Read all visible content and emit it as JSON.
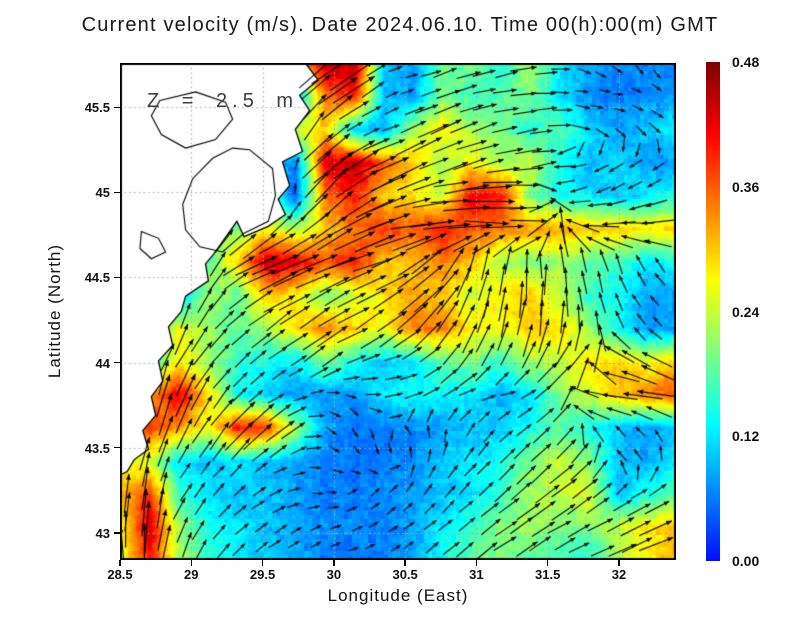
{
  "title": "Current velocity (m/s). Date 2024.06.10. Time 00(h):00(m) GMT",
  "annotation": "Z = 2.5 m",
  "axes": {
    "x": {
      "label": "Longitude (East)",
      "tick_labels": [
        "28.5",
        "29",
        "29.5",
        "30",
        "30.5",
        "31",
        "31.5",
        "32"
      ],
      "tick_values": [
        28.5,
        29,
        29.5,
        30,
        30.5,
        31,
        31.5,
        32
      ],
      "range": [
        28.5,
        32.4
      ]
    },
    "y": {
      "label": "Latitude (North)",
      "tick_labels": [
        "45.5",
        "45",
        "44.5",
        "44",
        "43.5",
        "43"
      ],
      "tick_values": [
        45.5,
        45,
        44.5,
        44,
        43.5,
        43
      ],
      "range": [
        42.84,
        45.76
      ]
    }
  },
  "colorbar": {
    "tick_labels": [
      "0.48",
      "0.36",
      "0.24",
      "0.12",
      "0.00"
    ],
    "tick_values": [
      0.48,
      0.36,
      0.24,
      0.12,
      0.0
    ],
    "min": 0.0,
    "max": 0.48,
    "units": "m/s",
    "colormap": "jet"
  },
  "chart_data": {
    "type": "heatmap",
    "variable": "sea surface current speed (m/s)",
    "overlay": "current velocity vectors (black arrows)",
    "depth_m": 2.5,
    "date": "2024.06.10",
    "time_gmt": "00:00",
    "lon_range": [
      28.5,
      32.4
    ],
    "lat_range": [
      42.84,
      45.76
    ],
    "grid_lon": [
      28.5,
      28.71,
      28.91,
      29.12,
      29.32,
      29.53,
      29.73,
      29.94,
      30.14,
      30.35,
      30.55,
      30.76,
      30.96,
      31.17,
      31.37,
      31.58,
      31.78,
      31.99,
      32.19,
      32.4
    ],
    "grid_lat": [
      45.76,
      45.57,
      45.37,
      45.18,
      44.98,
      44.79,
      44.59,
      44.4,
      44.2,
      44.01,
      43.81,
      43.62,
      43.42,
      43.23,
      43.03,
      42.84
    ],
    "speed_ms": [
      [
        null,
        null,
        null,
        null,
        null,
        null,
        null,
        0.44,
        0.45,
        0.1,
        0.08,
        0.18,
        0.2,
        0.15,
        0.22,
        0.13,
        0.08,
        0.07,
        0.06,
        0.06
      ],
      [
        null,
        null,
        null,
        null,
        null,
        null,
        0.08,
        0.35,
        0.4,
        0.09,
        0.08,
        0.2,
        0.16,
        0.18,
        0.2,
        0.12,
        0.07,
        0.06,
        0.07,
        0.08
      ],
      [
        null,
        null,
        null,
        null,
        null,
        null,
        0.24,
        0.3,
        0.1,
        0.09,
        0.22,
        0.28,
        0.22,
        0.2,
        0.15,
        0.18,
        0.12,
        0.08,
        0.1,
        0.12
      ],
      [
        null,
        null,
        null,
        null,
        null,
        null,
        0.06,
        0.42,
        0.45,
        0.36,
        0.3,
        0.22,
        0.27,
        0.22,
        0.24,
        0.14,
        0.09,
        0.12,
        0.08,
        0.08
      ],
      [
        null,
        null,
        null,
        null,
        null,
        null,
        0.05,
        0.35,
        0.4,
        0.3,
        0.28,
        0.24,
        0.42,
        0.4,
        0.2,
        0.14,
        0.12,
        0.1,
        0.12,
        0.14
      ],
      [
        null,
        null,
        null,
        null,
        0.2,
        0.28,
        0.22,
        0.3,
        0.34,
        0.38,
        0.36,
        0.4,
        0.36,
        0.34,
        0.32,
        0.32,
        0.3,
        0.3,
        0.28,
        0.3
      ],
      [
        null,
        null,
        null,
        0.18,
        0.3,
        0.44,
        0.42,
        0.36,
        0.4,
        0.3,
        0.3,
        0.34,
        0.3,
        0.22,
        0.2,
        0.22,
        0.18,
        0.16,
        0.12,
        0.14
      ],
      [
        null,
        null,
        0.1,
        0.22,
        0.18,
        0.3,
        0.28,
        0.2,
        0.24,
        0.28,
        0.32,
        0.3,
        0.24,
        0.28,
        0.3,
        0.24,
        0.16,
        0.14,
        0.08,
        0.08
      ],
      [
        null,
        null,
        0.26,
        0.22,
        0.18,
        0.22,
        0.28,
        0.34,
        0.3,
        0.26,
        0.34,
        0.34,
        0.28,
        0.26,
        0.3,
        0.28,
        0.22,
        0.14,
        0.07,
        0.08
      ],
      [
        null,
        0.14,
        0.28,
        0.22,
        0.16,
        0.14,
        0.12,
        0.2,
        0.14,
        0.1,
        0.12,
        0.18,
        0.2,
        0.16,
        0.22,
        0.24,
        0.28,
        0.3,
        0.26,
        0.3
      ],
      [
        null,
        0.32,
        0.42,
        0.28,
        0.14,
        0.1,
        0.08,
        0.08,
        0.07,
        0.12,
        0.14,
        0.13,
        0.12,
        0.09,
        0.12,
        0.2,
        0.24,
        0.3,
        0.34,
        0.36
      ],
      [
        null,
        0.38,
        0.32,
        0.26,
        0.4,
        0.38,
        0.22,
        0.08,
        0.06,
        0.06,
        0.07,
        0.08,
        0.1,
        0.1,
        0.14,
        0.18,
        0.14,
        0.1,
        0.08,
        0.1
      ],
      [
        0.26,
        0.24,
        0.12,
        0.1,
        0.12,
        0.1,
        0.08,
        0.07,
        0.05,
        0.06,
        0.07,
        0.1,
        0.12,
        0.14,
        0.2,
        0.24,
        0.2,
        0.1,
        0.08,
        0.12
      ],
      [
        0.3,
        0.38,
        0.16,
        0.12,
        0.1,
        0.1,
        0.08,
        0.06,
        0.06,
        0.07,
        0.08,
        0.1,
        0.12,
        0.16,
        0.22,
        0.24,
        0.26,
        0.1,
        0.14,
        0.18
      ],
      [
        0.26,
        0.44,
        0.22,
        0.14,
        0.12,
        0.1,
        0.08,
        0.07,
        0.07,
        0.06,
        0.08,
        0.12,
        0.16,
        0.2,
        0.22,
        0.2,
        0.2,
        0.24,
        0.28,
        0.3
      ],
      [
        0.24,
        0.4,
        0.22,
        0.16,
        0.12,
        0.1,
        0.08,
        0.06,
        0.05,
        0.06,
        0.08,
        0.14,
        0.18,
        0.2,
        0.18,
        0.16,
        0.14,
        0.22,
        0.28,
        0.32
      ]
    ],
    "flow_direction_deg_ccw_from_east": [
      [
        null,
        null,
        null,
        null,
        null,
        null,
        null,
        35,
        35,
        20,
        10,
        20,
        20,
        15,
        10,
        0,
        -30,
        -45,
        -60,
        -90
      ],
      [
        null,
        null,
        null,
        null,
        null,
        null,
        70,
        40,
        35,
        25,
        15,
        20,
        15,
        10,
        5,
        0,
        -10,
        0,
        -20,
        -30
      ],
      [
        null,
        null,
        null,
        null,
        null,
        null,
        80,
        45,
        30,
        20,
        25,
        25,
        20,
        15,
        10,
        0,
        -20,
        -30,
        -40,
        -45
      ],
      [
        null,
        null,
        null,
        null,
        null,
        null,
        85,
        40,
        30,
        25,
        25,
        20,
        20,
        15,
        5,
        180,
        200,
        210,
        215,
        220
      ],
      [
        null,
        null,
        null,
        null,
        null,
        null,
        85,
        50,
        35,
        25,
        20,
        10,
        5,
        0,
        0,
        190,
        200,
        205,
        210,
        210
      ],
      [
        null,
        null,
        null,
        null,
        60,
        45,
        40,
        35,
        30,
        20,
        10,
        5,
        0,
        0,
        0,
        90,
        175,
        180,
        180,
        185
      ],
      [
        null,
        null,
        null,
        80,
        30,
        25,
        25,
        20,
        20,
        20,
        30,
        45,
        70,
        85,
        90,
        95,
        100,
        110,
        120,
        130
      ],
      [
        null,
        null,
        85,
        60,
        35,
        30,
        30,
        25,
        30,
        30,
        35,
        50,
        70,
        80,
        85,
        90,
        100,
        115,
        130,
        140
      ],
      [
        null,
        null,
        70,
        50,
        45,
        40,
        35,
        35,
        30,
        35,
        40,
        50,
        65,
        75,
        80,
        85,
        95,
        110,
        130,
        145
      ],
      [
        null,
        85,
        60,
        50,
        45,
        40,
        30,
        35,
        20,
        10,
        20,
        40,
        55,
        60,
        55,
        50,
        45,
        160,
        150,
        160
      ],
      [
        null,
        80,
        70,
        55,
        45,
        30,
        20,
        0,
        -20,
        10,
        20,
        30,
        20,
        10,
        30,
        40,
        170,
        175,
        170,
        165
      ],
      [
        null,
        75,
        65,
        55,
        50,
        40,
        30,
        -30,
        -60,
        -90,
        120,
        90,
        60,
        45,
        40,
        45,
        135,
        135,
        135,
        120
      ],
      [
        80,
        70,
        60,
        50,
        45,
        35,
        20,
        -20,
        -45,
        -70,
        90,
        70,
        50,
        45,
        45,
        40,
        40,
        135,
        120,
        60
      ],
      [
        85,
        80,
        60,
        50,
        40,
        30,
        10,
        -10,
        30,
        45,
        50,
        45,
        45,
        40,
        40,
        40,
        35,
        35,
        30,
        30
      ],
      [
        90,
        85,
        70,
        50,
        40,
        35,
        30,
        20,
        20,
        30,
        35,
        40,
        40,
        35,
        35,
        30,
        30,
        25,
        25,
        20
      ],
      [
        95,
        90,
        75,
        55,
        45,
        40,
        35,
        30,
        25,
        30,
        35,
        40,
        35,
        35,
        30,
        30,
        25,
        25,
        20,
        20
      ]
    ],
    "land_polygon_lonlat": [
      [
        28.5,
        45.76
      ],
      [
        29.8,
        45.76
      ],
      [
        29.89,
        45.66
      ],
      [
        29.76,
        45.57
      ],
      [
        29.83,
        45.48
      ],
      [
        29.73,
        45.37
      ],
      [
        29.78,
        45.24
      ],
      [
        29.64,
        45.18
      ],
      [
        29.69,
        45.04
      ],
      [
        29.61,
        44.96
      ],
      [
        29.66,
        44.87
      ],
      [
        29.54,
        44.8
      ],
      [
        29.37,
        44.74
      ],
      [
        29.32,
        44.83
      ],
      [
        29.16,
        44.64
      ],
      [
        29.1,
        44.58
      ],
      [
        29.12,
        44.48
      ],
      [
        28.96,
        44.39
      ],
      [
        28.93,
        44.3
      ],
      [
        28.84,
        44.21
      ],
      [
        28.87,
        44.1
      ],
      [
        28.77,
        44.01
      ],
      [
        28.8,
        43.89
      ],
      [
        28.72,
        43.8
      ],
      [
        28.75,
        43.69
      ],
      [
        28.66,
        43.6
      ],
      [
        28.7,
        43.49
      ],
      [
        28.6,
        43.43
      ],
      [
        28.55,
        43.36
      ],
      [
        28.5,
        43.34
      ]
    ],
    "lakes_lonlat": [
      [
        [
          29.41,
          45.25
        ],
        [
          29.57,
          45.14
        ],
        [
          29.59,
          44.98
        ],
        [
          29.54,
          44.83
        ],
        [
          29.37,
          44.76
        ],
        [
          29.22,
          44.65
        ],
        [
          29.06,
          44.68
        ],
        [
          28.96,
          44.78
        ],
        [
          28.94,
          44.93
        ],
        [
          29.01,
          45.08
        ],
        [
          29.15,
          45.2
        ],
        [
          29.29,
          45.26
        ]
      ],
      [
        [
          28.65,
          44.77
        ],
        [
          28.77,
          44.73
        ],
        [
          28.82,
          44.65
        ],
        [
          28.72,
          44.61
        ],
        [
          28.64,
          44.67
        ]
      ],
      [
        [
          28.78,
          45.54
        ],
        [
          29.03,
          45.59
        ],
        [
          29.24,
          45.53
        ],
        [
          29.29,
          45.43
        ],
        [
          29.17,
          45.31
        ],
        [
          28.96,
          45.26
        ],
        [
          28.79,
          45.34
        ],
        [
          28.72,
          45.45
        ]
      ]
    ]
  }
}
